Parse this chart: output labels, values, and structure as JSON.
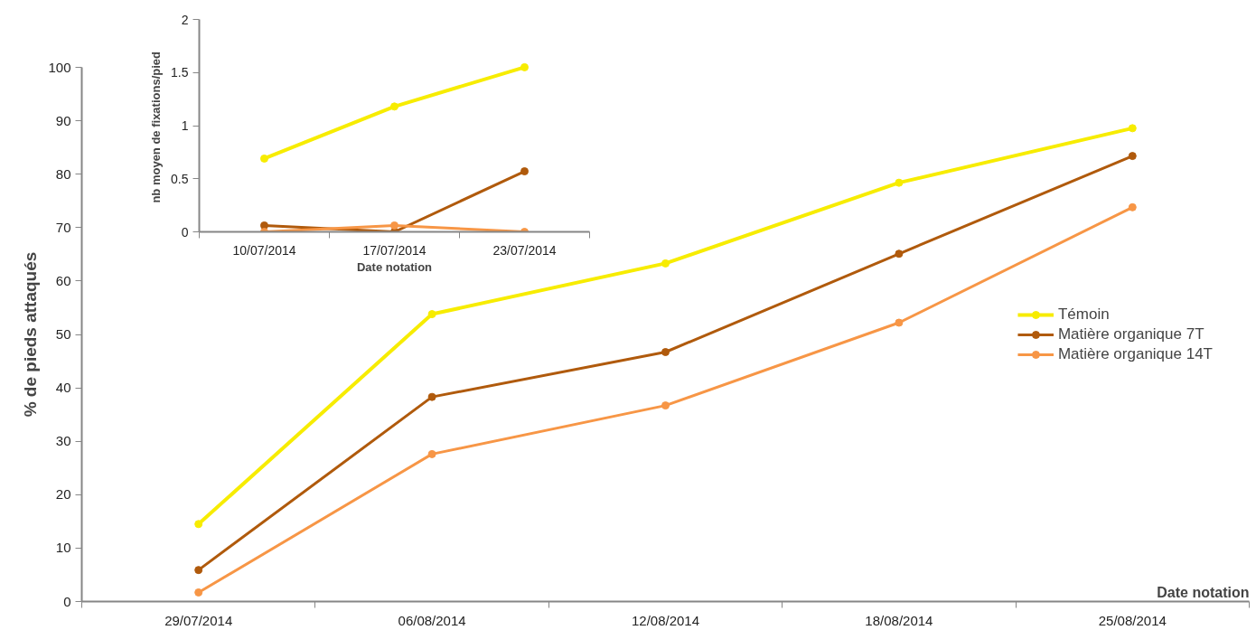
{
  "chart_data": [
    {
      "type": "line",
      "xlabel": "Date notation",
      "ylabel": "% de pieds attaqués",
      "categories": [
        "29/07/2014",
        "06/08/2014",
        "12/08/2014",
        "18/08/2014",
        "25/08/2014"
      ],
      "series": [
        {
          "name": "Témoin",
          "color": "#f7ec00",
          "values": [
            14.5,
            53.8,
            63.3,
            78.4,
            88.6
          ]
        },
        {
          "name": "Matière organique 7T",
          "color": "#b05a0c",
          "values": [
            5.9,
            38.3,
            46.7,
            65.1,
            83.4
          ]
        },
        {
          "name": "Matière organique 14T",
          "color": "#f79646",
          "values": [
            1.7,
            27.6,
            36.7,
            52.2,
            73.8
          ]
        }
      ],
      "ylim": [
        0,
        100
      ],
      "yticks": [
        0,
        10,
        20,
        30,
        40,
        50,
        60,
        70,
        80,
        90,
        100
      ],
      "marker": "circle",
      "legend": "right",
      "grid": false
    },
    {
      "type": "line",
      "xlabel": "Date notation",
      "ylabel": "nb  moyen de fixations/pied",
      "categories": [
        "10/07/2014",
        "17/07/2014",
        "23/07/2014"
      ],
      "series": [
        {
          "color": "#f7ec00",
          "values": [
            0.69,
            1.18,
            1.55
          ]
        },
        {
          "color": "#b05a0c",
          "values": [
            0.06,
            0,
            0.57
          ]
        },
        {
          "color": "#f79646",
          "values": [
            0,
            0.06,
            0
          ]
        }
      ],
      "ylim": [
        0,
        2
      ],
      "yticks": [
        0,
        0.5,
        1,
        1.5,
        2
      ],
      "marker": "circle",
      "legend": false,
      "grid": false
    }
  ]
}
